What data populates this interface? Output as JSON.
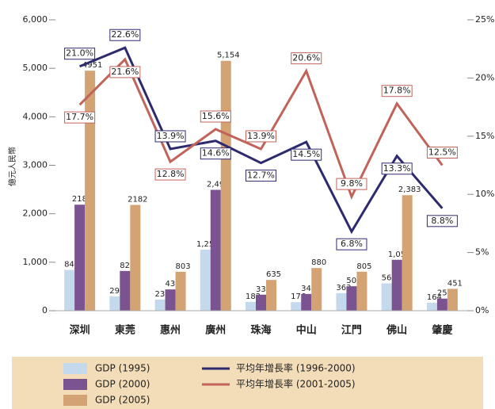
{
  "chart_data": {
    "type": "bar",
    "y_label": "億元人民幣",
    "categories": [
      "深圳",
      "東莞",
      "惠州",
      "廣州",
      "珠海",
      "中山",
      "江門",
      "佛山",
      "肇慶"
    ],
    "series": [
      {
        "name": "GDP (1995)",
        "color": "#c5d9ec",
        "values": [
          842,
          296,
          230,
          1259,
          183,
          176,
          363,
          564,
          164
        ],
        "value_labels": [
          "842",
          "296",
          "230",
          "1,259",
          "183",
          "176",
          "363",
          "564",
          "164"
        ]
      },
      {
        "name": "GDP (2000)",
        "color": "#7b5390",
        "values": [
          2187,
          820,
          439,
          2493,
          331,
          345,
          505,
          1050,
          250
        ],
        "value_labels": [
          "2187",
          "820",
          "439",
          "2,493",
          "331",
          "345",
          "505",
          "1,050",
          "250"
        ]
      },
      {
        "name": "GDP (2005)",
        "color": "#d4a373",
        "values": [
          4951,
          2182,
          803,
          5154,
          635,
          880,
          805,
          2383,
          451
        ],
        "value_labels": [
          "4951",
          "2182",
          "803",
          "5,154",
          "635",
          "880",
          "805",
          "2,383",
          "451"
        ]
      },
      {
        "name": "平均年增長率 (1996-2000)",
        "type": "line",
        "axis": "y2",
        "color": "#2e2a6e",
        "values": [
          21.0,
          22.6,
          13.9,
          14.6,
          12.7,
          14.5,
          6.8,
          13.3,
          8.8
        ],
        "value_labels": [
          "21.0%",
          "22.6%",
          "13.9%",
          "14.6%",
          "12.7%",
          "14.5%",
          "6.8%",
          "13.3%",
          "8.8%"
        ]
      },
      {
        "name": "平均年增長率 (2001-2005)",
        "type": "line",
        "axis": "y2",
        "color": "#c0645a",
        "values": [
          17.7,
          21.6,
          12.8,
          15.6,
          13.9,
          20.6,
          9.8,
          17.8,
          12.5
        ],
        "value_labels": [
          "17.7%",
          "21.6%",
          "12.8%",
          "15.6%",
          "13.9%",
          "20.6%",
          "9.8%",
          "17.8%",
          "12.5%"
        ]
      }
    ],
    "ylim": [
      0,
      6000
    ],
    "yticks": [
      0,
      {
        "value": 1000,
        "label": "1,000"
      },
      {
        "value": 2000,
        "label": "2,000"
      },
      {
        "value": 3000,
        "label": "3,000"
      },
      {
        "value": 4000,
        "label": "4,000"
      },
      {
        "value": 5000,
        "label": "5,000"
      },
      {
        "value": 6000,
        "label": "6,000"
      }
    ],
    "y2lim": [
      0,
      25
    ],
    "y2ticks": [
      {
        "value": 0,
        "label": "0%"
      },
      {
        "value": 5,
        "label": "5%"
      },
      {
        "value": 10,
        "label": "10%"
      },
      {
        "value": 15,
        "label": "15%"
      },
      {
        "value": 20,
        "label": "20%"
      },
      {
        "value": 25,
        "label": "25%"
      }
    ],
    "legend": "bottom"
  }
}
